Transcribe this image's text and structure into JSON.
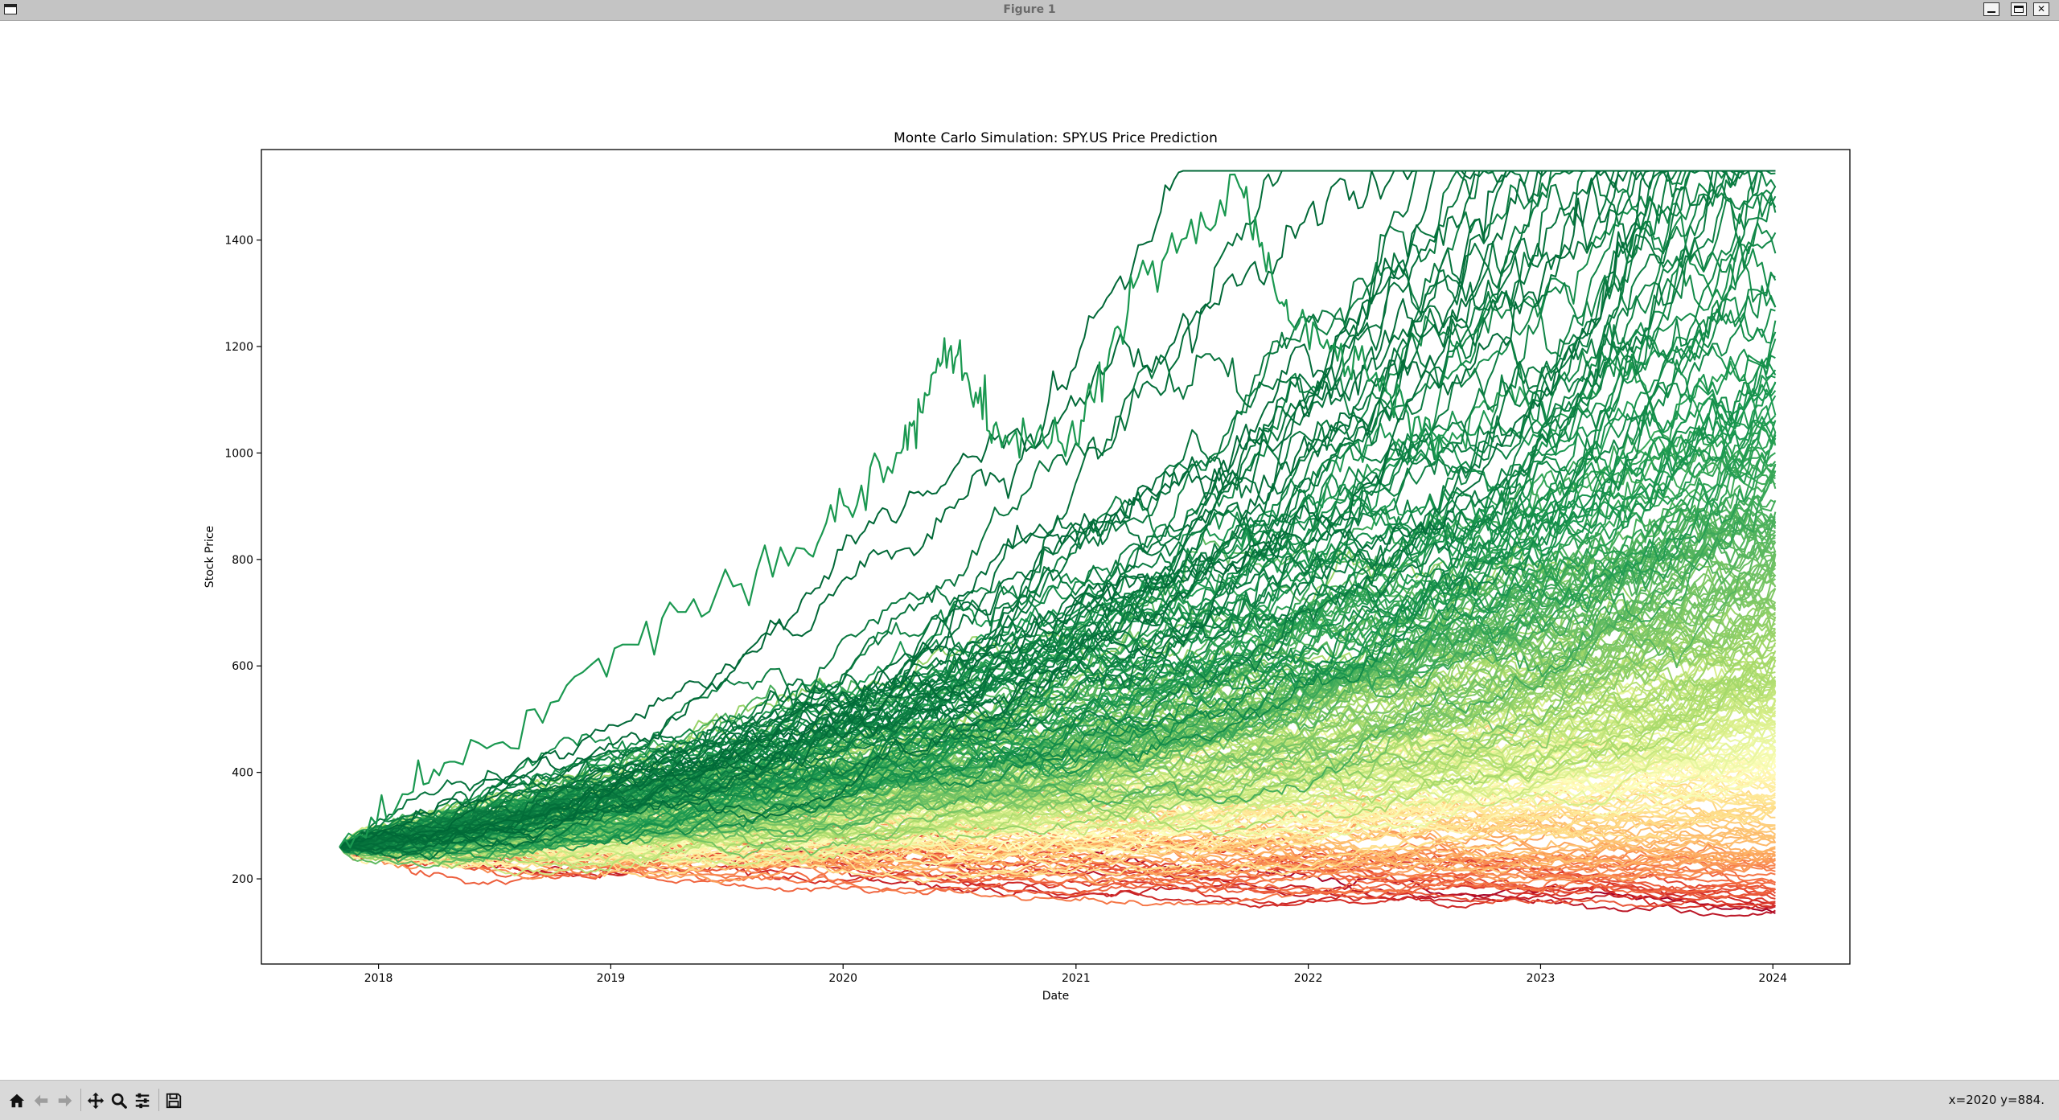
{
  "window": {
    "title": "Figure 1"
  },
  "toolbar": {
    "tools": [
      "home-icon",
      "back-icon",
      "forward-icon",
      "pan-icon",
      "zoom-icon",
      "configure-subplots-icon",
      "save-icon"
    ],
    "coords": "x=2020 y=884."
  },
  "chart_data": {
    "type": "line",
    "title": "Monte Carlo Simulation: SPY.US Price Prediction",
    "xlabel": "Date",
    "ylabel": "Stock Price",
    "x_ticks": [
      "2018",
      "2019",
      "2020",
      "2021",
      "2022",
      "2023",
      "2024"
    ],
    "y_ticks": [
      200,
      400,
      600,
      800,
      1000,
      1200,
      1400
    ],
    "xlim": [
      "2017-07-01",
      "2024-05-01"
    ],
    "ylim": [
      40,
      1570
    ],
    "x_start": "2017-11-01",
    "x_end": "2024-01-05",
    "start_price": 260,
    "colormap": "RdYlGn",
    "colormap_stops": [
      "#a50026",
      "#d73027",
      "#f46d43",
      "#fdae61",
      "#fee08b",
      "#ffffbf",
      "#d9ef8b",
      "#a6d96a",
      "#66bd63",
      "#1a9850",
      "#006837"
    ],
    "color_encoding": "final price rank (low = red, high = green)",
    "final_price_range": [
      230,
      920
    ],
    "outlier_path": [
      {
        "x": "2017-11-01",
        "y": 260
      },
      {
        "x": "2018-05-01",
        "y": 420
      },
      {
        "x": "2019-02-01",
        "y": 640
      },
      {
        "x": "2019-11-01",
        "y": 820
      },
      {
        "x": "2020-04-01",
        "y": 1000
      },
      {
        "x": "2020-06-15",
        "y": 1190
      },
      {
        "x": "2020-09-01",
        "y": 1040
      },
      {
        "x": "2021-01-01",
        "y": 1020
      },
      {
        "x": "2021-04-01",
        "y": 1310
      },
      {
        "x": "2021-09-15",
        "y": 1500
      },
      {
        "x": "2021-12-01",
        "y": 1250
      },
      {
        "x": "2022-04-01",
        "y": 1160
      },
      {
        "x": "2022-08-01",
        "y": 1000
      }
    ]
  }
}
